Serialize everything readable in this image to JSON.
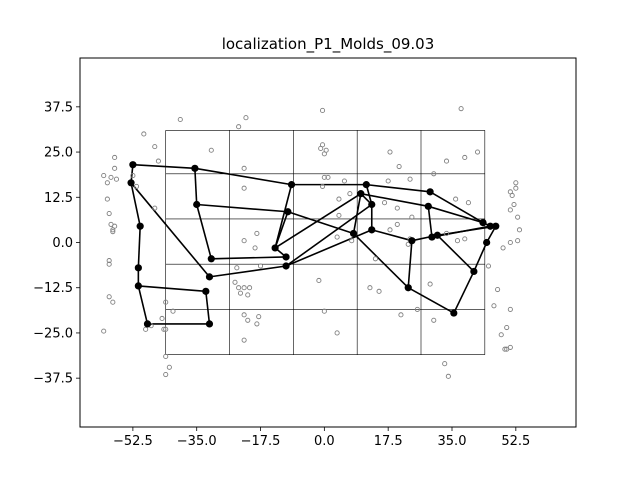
{
  "chart_data": {
    "type": "scatter",
    "title": "localization_P1_Molds_09.03",
    "xlabel": "",
    "ylabel": "",
    "xlim": [
      -67,
      69
    ],
    "ylim": [
      -51,
      51
    ],
    "xticks": [
      -52.5,
      -35.0,
      -17.5,
      0.0,
      17.5,
      35.0,
      52.5
    ],
    "yticks": [
      37.5,
      25.0,
      12.5,
      0.0,
      -12.5,
      -25.0,
      -37.5
    ],
    "xtick_labels": [
      "−52.5",
      "−35.0",
      "−17.5",
      "0.0",
      "17.5",
      "35.0",
      "52.5"
    ],
    "ytick_labels": [
      "37.5",
      "25.0",
      "12.5",
      "0.0",
      "−12.5",
      "−25.0",
      "−37.5"
    ],
    "grid": {
      "x_lines": [
        -43.5,
        -26.0,
        -8.5,
        9.0,
        26.5,
        44.0
      ],
      "y_lines": [
        31.0,
        19.0,
        6.5,
        -6.0,
        -18.5,
        -31.0
      ],
      "color": "#000000"
    },
    "series": [
      {
        "kind": "points",
        "color": "#808080",
        "marker": "hollow-circle",
        "points": [
          [
            -57.5,
            23.5
          ],
          [
            -57.5,
            20.5
          ],
          [
            -58.5,
            18.0
          ],
          [
            -57.0,
            17.5
          ],
          [
            -59.5,
            16.5
          ],
          [
            -60.5,
            18.5
          ],
          [
            -59.5,
            12.0
          ],
          [
            -59.0,
            8.0
          ],
          [
            -58.5,
            5.0
          ],
          [
            -57.5,
            4.5
          ],
          [
            -58.0,
            3.5
          ],
          [
            -58.0,
            3.0
          ],
          [
            -59.0,
            -5.0
          ],
          [
            -59.0,
            -6.0
          ],
          [
            -59.0,
            -15.0
          ],
          [
            -58.0,
            -16.5
          ],
          [
            -60.5,
            -24.5
          ],
          [
            -49.5,
            30.0
          ],
          [
            -46.5,
            26.5
          ],
          [
            -45.5,
            22.5
          ],
          [
            -52.5,
            18.5
          ],
          [
            -51.5,
            15.5
          ],
          [
            -46.5,
            9.5
          ],
          [
            -49.0,
            -24.0
          ],
          [
            -47.5,
            -23.0
          ],
          [
            -44.5,
            -21.0
          ],
          [
            -43.5,
            -16.5
          ],
          [
            -41.5,
            -19.0
          ],
          [
            -43.5,
            -24.0
          ],
          [
            -44.0,
            -24.0
          ],
          [
            -43.5,
            -31.5
          ],
          [
            -42.5,
            -34.5
          ],
          [
            -43.5,
            -36.5
          ],
          [
            -39.5,
            34.0
          ],
          [
            -31.0,
            25.5
          ],
          [
            -23.5,
            32.0
          ],
          [
            -21.5,
            34.5
          ],
          [
            -22.0,
            20.5
          ],
          [
            -22.0,
            15.0
          ],
          [
            -22.0,
            0.5
          ],
          [
            -18.5,
            2.5
          ],
          [
            -19.0,
            -1.5
          ],
          [
            -17.5,
            -6.5
          ],
          [
            -24.0,
            -7.0
          ],
          [
            -24.5,
            -11.0
          ],
          [
            -23.5,
            -12.5
          ],
          [
            -22.0,
            -12.5
          ],
          [
            -23.0,
            -14.0
          ],
          [
            -20.5,
            -12.5
          ],
          [
            -21.0,
            -14.5
          ],
          [
            -22.0,
            -20.0
          ],
          [
            -21.0,
            -21.5
          ],
          [
            -18.0,
            -20.5
          ],
          [
            -18.5,
            -22.5
          ],
          [
            -22.0,
            -27.0
          ],
          [
            -0.5,
            36.5
          ],
          [
            -1.0,
            26.0
          ],
          [
            -0.5,
            27.0
          ],
          [
            0.5,
            25.5
          ],
          [
            0.0,
            24.5
          ],
          [
            0.0,
            18.0
          ],
          [
            1.0,
            18.0
          ],
          [
            -0.5,
            15.5
          ],
          [
            4.0,
            12.0
          ],
          [
            5.5,
            17.0
          ],
          [
            7.0,
            13.5
          ],
          [
            4.0,
            7.5
          ],
          [
            3.5,
            1.5
          ],
          [
            7.5,
            0.5
          ],
          [
            -1.5,
            -10.5
          ],
          [
            0.0,
            -19.0
          ],
          [
            3.5,
            -25.0
          ],
          [
            18.0,
            25.0
          ],
          [
            20.5,
            21.0
          ],
          [
            23.5,
            17.5
          ],
          [
            17.5,
            17.0
          ],
          [
            16.5,
            11.0
          ],
          [
            20.0,
            9.5
          ],
          [
            24.0,
            7.0
          ],
          [
            20.0,
            5.0
          ],
          [
            18.0,
            3.5
          ],
          [
            23.5,
            1.0
          ],
          [
            23.0,
            -0.5
          ],
          [
            14.0,
            -4.5
          ],
          [
            12.5,
            -12.5
          ],
          [
            15.0,
            -13.5
          ],
          [
            21.0,
            -20.0
          ],
          [
            25.5,
            -18.5
          ],
          [
            33.5,
            22.5
          ],
          [
            37.5,
            37.0
          ],
          [
            38.5,
            23.5
          ],
          [
            42.0,
            25.0
          ],
          [
            30.0,
            19.0
          ],
          [
            36.0,
            12.0
          ],
          [
            39.5,
            11.0
          ],
          [
            33.5,
            2.5
          ],
          [
            36.5,
            0.5
          ],
          [
            38.5,
            1.0
          ],
          [
            45.0,
            -6.5
          ],
          [
            29.0,
            -11.5
          ],
          [
            30.0,
            -21.5
          ],
          [
            33.0,
            -33.5
          ],
          [
            34.0,
            -37.0
          ],
          [
            52.5,
            16.5
          ],
          [
            52.5,
            15.0
          ],
          [
            51.0,
            14.0
          ],
          [
            51.5,
            13.0
          ],
          [
            52.0,
            10.5
          ],
          [
            51.0,
            9.0
          ],
          [
            53.0,
            7.0
          ],
          [
            53.5,
            3.5
          ],
          [
            53.0,
            0.5
          ],
          [
            51.0,
            0.0
          ],
          [
            49.0,
            -1.5
          ],
          [
            47.5,
            -13.0
          ],
          [
            46.5,
            -17.5
          ],
          [
            51.0,
            -18.5
          ],
          [
            50.0,
            -23.5
          ],
          [
            48.5,
            -25.5
          ],
          [
            51.0,
            -29.0
          ],
          [
            50.0,
            -29.5
          ],
          [
            49.5,
            -29.5
          ]
        ]
      },
      {
        "kind": "network",
        "color": "#000000",
        "marker": "filled-circle",
        "nodes": [
          [
            -52.5,
            21.5
          ],
          [
            -53.0,
            16.5
          ],
          [
            -50.5,
            4.5
          ],
          [
            -51.0,
            -7.0
          ],
          [
            -51.0,
            -12.0
          ],
          [
            -48.5,
            -22.5
          ],
          [
            -35.5,
            20.5
          ],
          [
            -35.0,
            10.5
          ],
          [
            -31.0,
            -4.5
          ],
          [
            -31.5,
            -9.5
          ],
          [
            -32.5,
            -13.5
          ],
          [
            -31.5,
            -22.5
          ],
          [
            -9.0,
            16.0
          ],
          [
            -10.0,
            8.5
          ],
          [
            -13.5,
            -1.5
          ],
          [
            -10.5,
            -4.0
          ],
          [
            -10.5,
            -6.5
          ],
          [
            11.5,
            16.0
          ],
          [
            10.0,
            13.5
          ],
          [
            13.0,
            10.5
          ],
          [
            8.0,
            2.5
          ],
          [
            13.0,
            3.5
          ],
          [
            24.0,
            0.5
          ],
          [
            29.0,
            14.0
          ],
          [
            28.5,
            10.0
          ],
          [
            29.5,
            1.5
          ],
          [
            31.0,
            2.0
          ],
          [
            23.0,
            -12.5
          ],
          [
            35.5,
            -19.5
          ],
          [
            41.0,
            -8.0
          ],
          [
            43.5,
            5.5
          ],
          [
            45.5,
            4.5
          ],
          [
            47.0,
            4.5
          ],
          [
            44.5,
            0.0
          ]
        ],
        "edges": [
          [
            0,
            1
          ],
          [
            1,
            2
          ],
          [
            2,
            3
          ],
          [
            3,
            4
          ],
          [
            4,
            5
          ],
          [
            5,
            11
          ],
          [
            0,
            6
          ],
          [
            6,
            7
          ],
          [
            7,
            8
          ],
          [
            1,
            9
          ],
          [
            4,
            10
          ],
          [
            10,
            11
          ],
          [
            9,
            16
          ],
          [
            8,
            15
          ],
          [
            15,
            14
          ],
          [
            14,
            13
          ],
          [
            13,
            7
          ],
          [
            6,
            12
          ],
          [
            12,
            14
          ],
          [
            12,
            17
          ],
          [
            17,
            23
          ],
          [
            23,
            30
          ],
          [
            30,
            31
          ],
          [
            31,
            32
          ],
          [
            32,
            33
          ],
          [
            33,
            29
          ],
          [
            29,
            28
          ],
          [
            28,
            27
          ],
          [
            27,
            20
          ],
          [
            20,
            13
          ],
          [
            20,
            18
          ],
          [
            18,
            14
          ],
          [
            18,
            24
          ],
          [
            24,
            25
          ],
          [
            25,
            31
          ],
          [
            18,
            19
          ],
          [
            19,
            21
          ],
          [
            21,
            22
          ],
          [
            22,
            26
          ],
          [
            26,
            32
          ],
          [
            26,
            29
          ],
          [
            17,
            19
          ],
          [
            19,
            16
          ],
          [
            21,
            16
          ],
          [
            24,
            30
          ],
          [
            22,
            27
          ],
          [
            25,
            26
          ]
        ]
      }
    ]
  }
}
